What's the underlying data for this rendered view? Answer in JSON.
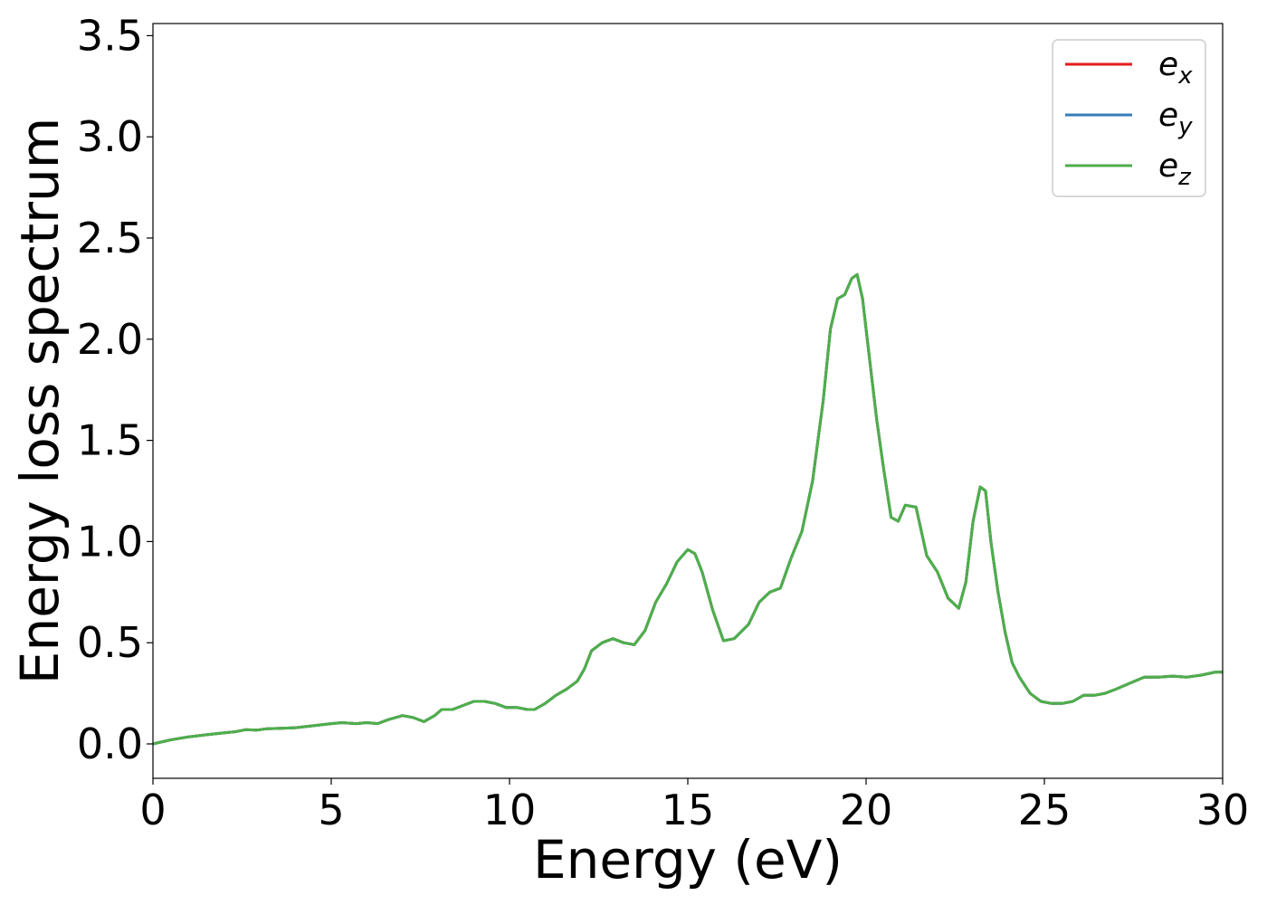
{
  "chart_data": {
    "type": "line",
    "xlabel": "Energy (eV)",
    "ylabel": "Energy loss spectrum",
    "xlim": [
      0,
      30
    ],
    "ylim": [
      -0.17,
      3.56
    ],
    "xticks": [
      "0",
      "5",
      "10",
      "15",
      "20",
      "25",
      "30"
    ],
    "yticks": [
      "0.0",
      "0.5",
      "1.0",
      "1.5",
      "2.0",
      "2.5",
      "3.0",
      "3.5"
    ],
    "grid": false,
    "legend_position": "top-right",
    "x": [
      0,
      0.5,
      1.0,
      1.5,
      2.0,
      2.3,
      2.6,
      2.9,
      3.2,
      3.6,
      4.0,
      4.5,
      5.0,
      5.3,
      5.7,
      6.0,
      6.3,
      6.6,
      7.0,
      7.3,
      7.6,
      7.9,
      8.1,
      8.4,
      8.7,
      9.0,
      9.3,
      9.6,
      9.9,
      10.2,
      10.5,
      10.7,
      11.0,
      11.3,
      11.6,
      11.9,
      12.1,
      12.3,
      12.6,
      12.9,
      13.2,
      13.5,
      13.8,
      14.1,
      14.4,
      14.7,
      15.0,
      15.2,
      15.4,
      15.7,
      16.0,
      16.3,
      16.7,
      17.0,
      17.3,
      17.6,
      17.9,
      18.2,
      18.5,
      18.8,
      19.0,
      19.2,
      19.4,
      19.6,
      19.75,
      19.9,
      20.1,
      20.3,
      20.5,
      20.7,
      20.9,
      21.1,
      21.4,
      21.7,
      22.0,
      22.3,
      22.6,
      22.8,
      23.0,
      23.2,
      23.35,
      23.5,
      23.7,
      23.9,
      24.1,
      24.3,
      24.6,
      24.9,
      25.2,
      25.5,
      25.8,
      26.1,
      26.4,
      26.7,
      27.0,
      27.4,
      27.8,
      28.2,
      28.6,
      29.0,
      29.4,
      29.8,
      30.0
    ],
    "series": [
      {
        "name": "e_x",
        "color": "#e41a1c",
        "values": [
          0.0,
          0.02,
          0.035,
          0.045,
          0.055,
          0.06,
          0.07,
          0.068,
          0.075,
          0.077,
          0.08,
          0.09,
          0.1,
          0.105,
          0.1,
          0.105,
          0.1,
          0.12,
          0.14,
          0.13,
          0.11,
          0.14,
          0.17,
          0.17,
          0.19,
          0.21,
          0.21,
          0.2,
          0.18,
          0.18,
          0.17,
          0.17,
          0.2,
          0.24,
          0.27,
          0.31,
          0.37,
          0.46,
          0.5,
          0.52,
          0.5,
          0.49,
          0.56,
          0.7,
          0.79,
          0.9,
          0.96,
          0.94,
          0.85,
          0.66,
          0.51,
          0.52,
          0.59,
          0.7,
          0.75,
          0.77,
          0.92,
          1.05,
          1.3,
          1.7,
          2.05,
          2.2,
          2.22,
          2.3,
          2.32,
          2.2,
          1.9,
          1.6,
          1.35,
          1.12,
          1.1,
          1.18,
          1.17,
          0.93,
          0.85,
          0.72,
          0.67,
          0.8,
          1.1,
          1.27,
          1.25,
          1.0,
          0.75,
          0.55,
          0.4,
          0.33,
          0.25,
          0.21,
          0.2,
          0.2,
          0.21,
          0.24,
          0.24,
          0.25,
          0.27,
          0.3,
          0.33,
          0.33,
          0.335,
          0.33,
          0.34,
          0.355,
          0.355
        ]
      },
      {
        "name": "e_y",
        "color": "#377eb8",
        "values": [
          0.0,
          0.02,
          0.035,
          0.045,
          0.055,
          0.06,
          0.07,
          0.068,
          0.075,
          0.077,
          0.08,
          0.09,
          0.1,
          0.105,
          0.1,
          0.105,
          0.1,
          0.12,
          0.14,
          0.13,
          0.11,
          0.14,
          0.17,
          0.17,
          0.19,
          0.21,
          0.21,
          0.2,
          0.18,
          0.18,
          0.17,
          0.17,
          0.2,
          0.24,
          0.27,
          0.31,
          0.37,
          0.46,
          0.5,
          0.52,
          0.5,
          0.49,
          0.56,
          0.7,
          0.79,
          0.9,
          0.96,
          0.94,
          0.85,
          0.66,
          0.51,
          0.52,
          0.59,
          0.7,
          0.75,
          0.77,
          0.92,
          1.05,
          1.3,
          1.7,
          2.05,
          2.2,
          2.22,
          2.3,
          2.32,
          2.2,
          1.9,
          1.6,
          1.35,
          1.12,
          1.1,
          1.18,
          1.17,
          0.93,
          0.85,
          0.72,
          0.67,
          0.8,
          1.1,
          1.27,
          1.25,
          1.0,
          0.75,
          0.55,
          0.4,
          0.33,
          0.25,
          0.21,
          0.2,
          0.2,
          0.21,
          0.24,
          0.24,
          0.25,
          0.27,
          0.3,
          0.33,
          0.33,
          0.335,
          0.33,
          0.34,
          0.355,
          0.355
        ]
      },
      {
        "name": "e_z",
        "color": "#4daf4a",
        "values": [
          0.0,
          0.02,
          0.035,
          0.045,
          0.055,
          0.06,
          0.07,
          0.068,
          0.075,
          0.077,
          0.08,
          0.09,
          0.1,
          0.105,
          0.1,
          0.105,
          0.1,
          0.12,
          0.14,
          0.13,
          0.11,
          0.14,
          0.17,
          0.17,
          0.19,
          0.21,
          0.21,
          0.2,
          0.18,
          0.18,
          0.17,
          0.17,
          0.2,
          0.24,
          0.27,
          0.31,
          0.37,
          0.46,
          0.5,
          0.52,
          0.5,
          0.49,
          0.56,
          0.7,
          0.79,
          0.9,
          0.96,
          0.94,
          0.85,
          0.66,
          0.51,
          0.52,
          0.59,
          0.7,
          0.75,
          0.77,
          0.92,
          1.05,
          1.3,
          1.7,
          2.05,
          2.2,
          2.22,
          2.3,
          2.32,
          2.2,
          1.9,
          1.6,
          1.35,
          1.12,
          1.1,
          1.18,
          1.17,
          0.93,
          0.85,
          0.72,
          0.67,
          0.8,
          1.1,
          1.27,
          1.25,
          1.0,
          0.75,
          0.55,
          0.4,
          0.33,
          0.25,
          0.21,
          0.2,
          0.2,
          0.21,
          0.24,
          0.24,
          0.25,
          0.27,
          0.3,
          0.33,
          0.33,
          0.335,
          0.33,
          0.34,
          0.355,
          0.355
        ]
      }
    ],
    "legend": [
      {
        "base": "e",
        "sub": "x",
        "color": "#e41a1c"
      },
      {
        "base": "e",
        "sub": "y",
        "color": "#377eb8"
      },
      {
        "base": "e",
        "sub": "z",
        "color": "#4daf4a"
      }
    ]
  }
}
